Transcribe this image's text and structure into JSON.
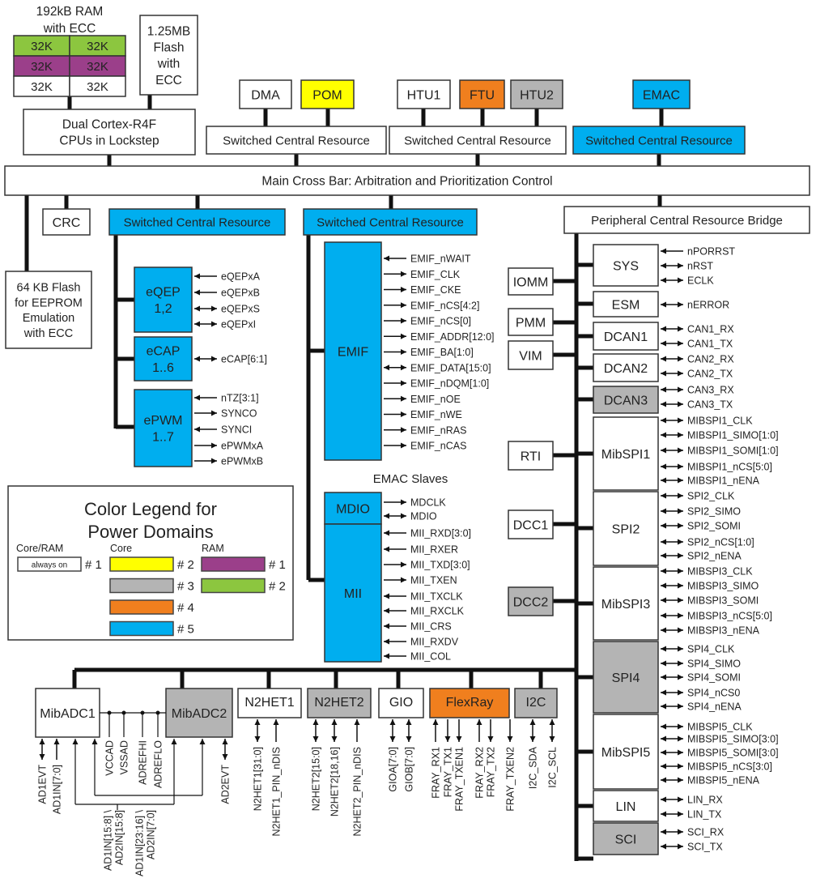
{
  "colors": {
    "always_on": "#ffffff",
    "core2": "#ffff00",
    "core3": "#b4b4b4",
    "core4": "#f07f1e",
    "core5": "#00aeef",
    "ram1": "#9b3f8a",
    "ram2": "#8cc63f",
    "line": "#111111"
  },
  "ram": {
    "title": [
      "192kB RAM",
      "with ECC"
    ],
    "banks": [
      [
        "32K",
        "32K"
      ],
      [
        "32K",
        "32K"
      ],
      [
        "32K",
        "32K"
      ]
    ],
    "bank_domains": [
      "ram2",
      "ram1",
      "always_on"
    ]
  },
  "blocks": {
    "flash": {
      "lines": [
        "1.25MB",
        "Flash",
        "with",
        "ECC"
      ],
      "domain": "always_on"
    },
    "cpu": {
      "lines": [
        "Dual Cortex-R4F",
        "CPUs in Lockstep"
      ],
      "domain": "always_on"
    },
    "dma": {
      "lines": [
        "DMA"
      ],
      "domain": "always_on"
    },
    "pom": {
      "lines": [
        "POM"
      ],
      "domain": "core2"
    },
    "htu1": {
      "lines": [
        "HTU1"
      ],
      "domain": "always_on"
    },
    "ftu": {
      "lines": [
        "FTU"
      ],
      "domain": "core4"
    },
    "htu2": {
      "lines": [
        "HTU2"
      ],
      "domain": "core3"
    },
    "emac": {
      "lines": [
        "EMAC"
      ],
      "domain": "core5"
    },
    "scr1": {
      "lines": [
        "Switched Central Resource"
      ],
      "domain": "always_on"
    },
    "scr2": {
      "lines": [
        "Switched Central Resource"
      ],
      "domain": "always_on"
    },
    "scr3": {
      "lines": [
        "Switched Central Resource"
      ],
      "domain": "core5"
    },
    "crossbar": {
      "lines": [
        "Main Cross Bar: Arbitration and Prioritization Control"
      ],
      "domain": "always_on"
    },
    "crc": {
      "lines": [
        "CRC"
      ],
      "domain": "always_on"
    },
    "scr4": {
      "lines": [
        "Switched Central Resource"
      ],
      "domain": "core5"
    },
    "scr5": {
      "lines": [
        "Switched Central Resource"
      ],
      "domain": "core5"
    },
    "pcrb": {
      "lines": [
        "Peripheral Central Resource Bridge"
      ],
      "domain": "always_on"
    },
    "flash64": {
      "lines": [
        "64 KB Flash",
        "for EEPROM",
        "Emulation",
        "with ECC"
      ],
      "domain": "always_on"
    },
    "eqep": {
      "lines": [
        "eQEP",
        "1,2"
      ],
      "domain": "core5"
    },
    "ecap": {
      "lines": [
        "eCAP",
        "1..6"
      ],
      "domain": "core5"
    },
    "epwm": {
      "lines": [
        "ePWM",
        "1..7"
      ],
      "domain": "core5"
    },
    "emif": {
      "lines": [
        "EMIF"
      ],
      "domain": "core5"
    },
    "mdio": {
      "lines": [
        "MDIO"
      ],
      "domain": "core5"
    },
    "mii": {
      "lines": [
        "MII"
      ],
      "domain": "core5"
    },
    "iomm": {
      "lines": [
        "IOMM"
      ],
      "domain": "always_on"
    },
    "pmm": {
      "lines": [
        "PMM"
      ],
      "domain": "always_on"
    },
    "vim": {
      "lines": [
        "VIM"
      ],
      "domain": "always_on"
    },
    "rti": {
      "lines": [
        "RTI"
      ],
      "domain": "always_on"
    },
    "dcc1": {
      "lines": [
        "DCC1"
      ],
      "domain": "always_on"
    },
    "dcc2": {
      "lines": [
        "DCC2"
      ],
      "domain": "core3"
    },
    "sys": {
      "lines": [
        "SYS"
      ],
      "domain": "always_on"
    },
    "esm": {
      "lines": [
        "ESM"
      ],
      "domain": "always_on"
    },
    "dcan1": {
      "lines": [
        "DCAN1"
      ],
      "domain": "always_on"
    },
    "dcan2": {
      "lines": [
        "DCAN2"
      ],
      "domain": "always_on"
    },
    "dcan3": {
      "lines": [
        "DCAN3"
      ],
      "domain": "core3"
    },
    "mibspi1": {
      "lines": [
        "MibSPI1"
      ],
      "domain": "always_on"
    },
    "spi2": {
      "lines": [
        "SPI2"
      ],
      "domain": "always_on"
    },
    "mibspi3": {
      "lines": [
        "MibSPI3"
      ],
      "domain": "always_on"
    },
    "spi4": {
      "lines": [
        "SPI4"
      ],
      "domain": "core3"
    },
    "mibspi5": {
      "lines": [
        "MibSPI5"
      ],
      "domain": "always_on"
    },
    "lin": {
      "lines": [
        "LIN"
      ],
      "domain": "always_on"
    },
    "sci": {
      "lines": [
        "SCI"
      ],
      "domain": "core3"
    },
    "mibadc1": {
      "lines": [
        "MibADC1"
      ],
      "domain": "always_on"
    },
    "mibadc2": {
      "lines": [
        "MibADC2"
      ],
      "domain": "core3"
    },
    "n2het1": {
      "lines": [
        "N2HET1"
      ],
      "domain": "always_on"
    },
    "n2het2": {
      "lines": [
        "N2HET2"
      ],
      "domain": "core3"
    },
    "gio": {
      "lines": [
        "GIO"
      ],
      "domain": "always_on"
    },
    "flexray": {
      "lines": [
        "FlexRay"
      ],
      "domain": "core4"
    },
    "i2c": {
      "lines": [
        "I2C"
      ],
      "domain": "core3"
    }
  },
  "emac_slaves_label": "EMAC Slaves",
  "signals": {
    "eqep": [
      {
        "label": "eQEPxA",
        "dir": "in"
      },
      {
        "label": "eQEPxB",
        "dir": "in"
      },
      {
        "label": "eQEPxS",
        "dir": "bi"
      },
      {
        "label": "eQEPxI",
        "dir": "bi"
      }
    ],
    "ecap": [
      {
        "label": "eCAP[6:1]",
        "dir": "bi"
      }
    ],
    "epwm": [
      {
        "label": "nTZ[3:1]",
        "dir": "in"
      },
      {
        "label": "SYNCO",
        "dir": "out"
      },
      {
        "label": "SYNCI",
        "dir": "in"
      },
      {
        "label": "ePWMxA",
        "dir": "out"
      },
      {
        "label": "ePWMxB",
        "dir": "out"
      }
    ],
    "emif": [
      {
        "label": "EMIF_nWAIT",
        "dir": "in"
      },
      {
        "label": "EMIF_CLK",
        "dir": "out"
      },
      {
        "label": "EMIF_CKE",
        "dir": "out"
      },
      {
        "label": "EMIF_nCS[4:2]",
        "dir": "out"
      },
      {
        "label": "EMIF_nCS[0]",
        "dir": "out"
      },
      {
        "label": "EMIF_ADDR[12:0]",
        "dir": "out"
      },
      {
        "label": "EMIF_BA[1:0]",
        "dir": "out"
      },
      {
        "label": "EMIF_DATA[15:0]",
        "dir": "bi"
      },
      {
        "label": "EMIF_nDQM[1:0]",
        "dir": "out"
      },
      {
        "label": "EMIF_nOE",
        "dir": "out"
      },
      {
        "label": "EMIF_nWE",
        "dir": "out"
      },
      {
        "label": "EMIF_nRAS",
        "dir": "out"
      },
      {
        "label": "EMIF_nCAS",
        "dir": "out"
      }
    ],
    "mdio": [
      {
        "label": "MDCLK",
        "dir": "out"
      },
      {
        "label": "MDIO",
        "dir": "bi"
      }
    ],
    "mii": [
      {
        "label": "MII_RXD[3:0]",
        "dir": "in"
      },
      {
        "label": "MII_RXER",
        "dir": "in"
      },
      {
        "label": "MII_TXD[3:0]",
        "dir": "out"
      },
      {
        "label": "MII_TXEN",
        "dir": "out"
      },
      {
        "label": "MII_TXCLK",
        "dir": "in"
      },
      {
        "label": "MII_RXCLK",
        "dir": "in"
      },
      {
        "label": "MII_CRS",
        "dir": "in"
      },
      {
        "label": "MII_RXDV",
        "dir": "in"
      },
      {
        "label": "MII_COL",
        "dir": "in"
      }
    ],
    "sys": [
      {
        "label": "nPORRST",
        "dir": "in"
      },
      {
        "label": "nRST",
        "dir": "bi"
      },
      {
        "label": "ECLK",
        "dir": "bi"
      }
    ],
    "esm": [
      {
        "label": "nERROR",
        "dir": "bi"
      }
    ],
    "dcan1": [
      {
        "label": "CAN1_RX",
        "dir": "bi"
      },
      {
        "label": "CAN1_TX",
        "dir": "bi"
      }
    ],
    "dcan2": [
      {
        "label": "CAN2_RX",
        "dir": "bi"
      },
      {
        "label": "CAN2_TX",
        "dir": "bi"
      }
    ],
    "dcan3": [
      {
        "label": "CAN3_RX",
        "dir": "bi"
      },
      {
        "label": "CAN3_TX",
        "dir": "bi"
      }
    ],
    "mibspi1": [
      {
        "label": "MIBSPI1_CLK",
        "dir": "bi"
      },
      {
        "label": "MIBSPI1_SIMO[1:0]",
        "dir": "bi"
      },
      {
        "label": "MIBSPI1_SOMI[1:0]",
        "dir": "bi"
      },
      {
        "label": "MIBSPI1_nCS[5:0]",
        "dir": "bi"
      },
      {
        "label": "MIBSPI1_nENA",
        "dir": "bi"
      }
    ],
    "spi2": [
      {
        "label": "SPI2_CLK",
        "dir": "bi"
      },
      {
        "label": "SPI2_SIMO",
        "dir": "bi"
      },
      {
        "label": "SPI2_SOMI",
        "dir": "bi"
      },
      {
        "label": "SPI2_nCS[1:0]",
        "dir": "bi"
      },
      {
        "label": "SPI2_nENA",
        "dir": "bi"
      }
    ],
    "mibspi3": [
      {
        "label": "MIBSPI3_CLK",
        "dir": "bi"
      },
      {
        "label": "MIBSPI3_SIMO",
        "dir": "bi"
      },
      {
        "label": "MIBSPI3_SOMI",
        "dir": "bi"
      },
      {
        "label": "MIBSPI3_nCS[5:0]",
        "dir": "bi"
      },
      {
        "label": "MIBSPI3_nENA",
        "dir": "bi"
      }
    ],
    "spi4": [
      {
        "label": "SPI4_CLK",
        "dir": "bi"
      },
      {
        "label": "SPI4_SIMO",
        "dir": "bi"
      },
      {
        "label": "SPI4_SOMI",
        "dir": "bi"
      },
      {
        "label": "SPI4_nCS0",
        "dir": "bi"
      },
      {
        "label": "SPI4_nENA",
        "dir": "bi"
      }
    ],
    "mibspi5": [
      {
        "label": "MIBSPI5_CLK",
        "dir": "bi"
      },
      {
        "label": "MIBSPI5_SIMO[3:0]",
        "dir": "bi"
      },
      {
        "label": "MIBSPI5_SOMI[3:0]",
        "dir": "bi"
      },
      {
        "label": "MIBSPI5_nCS[3:0]",
        "dir": "bi"
      },
      {
        "label": "MIBSPI5_nENA",
        "dir": "bi"
      }
    ],
    "lin": [
      {
        "label": "LIN_RX",
        "dir": "bi"
      },
      {
        "label": "LIN_TX",
        "dir": "bi"
      }
    ],
    "sci": [
      {
        "label": "SCI_RX",
        "dir": "bi"
      },
      {
        "label": "SCI_TX",
        "dir": "bi"
      }
    ]
  },
  "bottom_signals": {
    "mibadc1": [
      {
        "label": "AD1EVT",
        "dir": "bi"
      },
      {
        "label": "AD1IN[7:0]",
        "dir": "in"
      }
    ],
    "adc_rails": [
      "VCCAD",
      "VSSAD",
      "ADREFHI",
      "ADREFLO"
    ],
    "adc_shared": [
      "AD1IN[15:8] \\",
      "AD2IN[15:8]",
      "AD1IN[23:16] \\",
      "AD2IN[7:0]"
    ],
    "mibadc2": [
      {
        "label": "AD2EVT",
        "dir": "bi"
      }
    ],
    "n2het1": [
      {
        "label": "N2HET1[31:0]",
        "dir": "bi"
      },
      {
        "label": "N2HET1_PIN_nDIS",
        "dir": "in"
      }
    ],
    "n2het2": [
      {
        "label": "N2HET2[15:0]",
        "dir": "bi"
      },
      {
        "label": "N2HET2[18,16]",
        "dir": "bi"
      },
      {
        "label": "N2HET2_PIN_nDIS",
        "dir": "in"
      }
    ],
    "gio": [
      {
        "label": "GIOA[7:0]",
        "dir": "bi"
      },
      {
        "label": "GIOB[7:0]",
        "dir": "bi"
      }
    ],
    "flexray": [
      {
        "label": "FRAY_RX1",
        "dir": "in"
      },
      {
        "label": "FRAY_TX1",
        "dir": "out"
      },
      {
        "label": "FRAY_TXEN1",
        "dir": "out"
      },
      {
        "label": "FRAY_RX2",
        "dir": "in"
      },
      {
        "label": "FRAY_TX2",
        "dir": "out"
      },
      {
        "label": "FRAY_TXEN2",
        "dir": "out"
      }
    ],
    "i2c": [
      {
        "label": "I2C_SDA",
        "dir": "bi"
      },
      {
        "label": "I2C_SCL",
        "dir": "bi"
      }
    ]
  },
  "legend": {
    "title": [
      "Color Legend for",
      "Power Domains"
    ],
    "columns": [
      "Core/RAM",
      "Core",
      "RAM"
    ],
    "always_on_label": "always on",
    "entries": [
      {
        "column": 0,
        "domain": "always_on",
        "label": "# 1"
      },
      {
        "column": 1,
        "domain": "core2",
        "label": "# 2"
      },
      {
        "column": 1,
        "domain": "core3",
        "label": "# 3"
      },
      {
        "column": 1,
        "domain": "core4",
        "label": "# 4"
      },
      {
        "column": 1,
        "domain": "core5",
        "label": "# 5"
      },
      {
        "column": 2,
        "domain": "ram1",
        "label": "# 1"
      },
      {
        "column": 2,
        "domain": "ram2",
        "label": "# 2"
      }
    ]
  }
}
